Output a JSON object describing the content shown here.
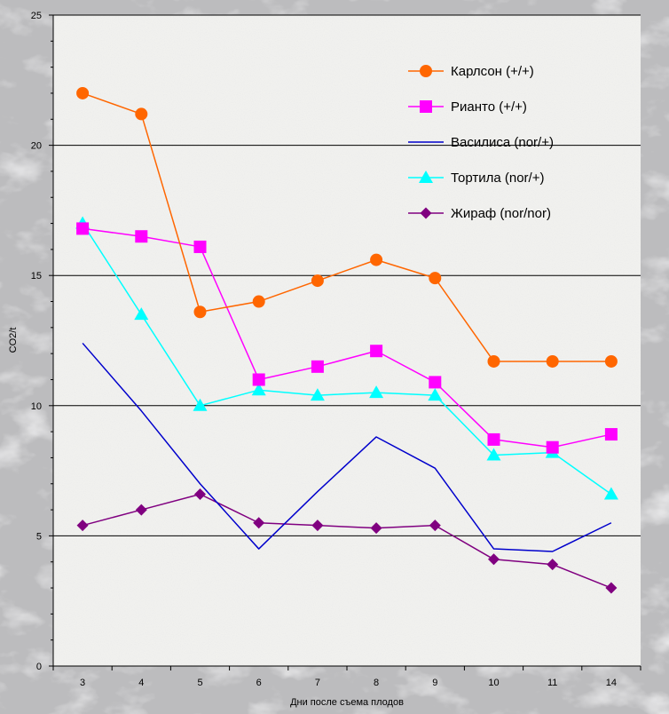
{
  "chart_data": {
    "type": "line",
    "title": "",
    "xlabel": "Дни после съема плодов",
    "ylabel": "CO2/t",
    "categories": [
      "3",
      "4",
      "5",
      "6",
      "7",
      "8",
      "9",
      "10",
      "11",
      "14"
    ],
    "ylim": [
      0,
      25
    ],
    "yticks": [
      0,
      5,
      10,
      15,
      20,
      25
    ],
    "grid": "horizontal major lines",
    "legend_position": "top-right",
    "series": [
      {
        "name": "Карлсон (+/+)",
        "color": "#ff6600",
        "marker": "circle",
        "values": [
          22.0,
          21.2,
          13.6,
          14.0,
          14.8,
          15.6,
          14.9,
          11.7,
          11.7,
          11.7
        ]
      },
      {
        "name": "Рианто (+/+)",
        "color": "#ff00ff",
        "marker": "square",
        "values": [
          16.8,
          16.5,
          16.1,
          11.0,
          11.5,
          12.1,
          10.9,
          8.7,
          8.4,
          8.9
        ]
      },
      {
        "name": "Василиса (nor/+)",
        "color": "#0000cc",
        "marker": "none",
        "values": [
          12.4,
          9.8,
          7.0,
          4.5,
          6.7,
          8.8,
          7.6,
          4.5,
          4.4,
          5.5
        ]
      },
      {
        "name": "Тортила (nor/+)",
        "color": "#00ffff",
        "marker": "triangle",
        "values": [
          17.0,
          13.5,
          10.0,
          10.6,
          10.4,
          10.5,
          10.4,
          8.1,
          8.2,
          6.6
        ]
      },
      {
        "name": "Жираф (nor/nor)",
        "color": "#800080",
        "marker": "diamond",
        "values": [
          5.4,
          6.0,
          6.6,
          5.5,
          5.4,
          5.3,
          5.4,
          4.1,
          3.9,
          3.0
        ]
      }
    ]
  }
}
